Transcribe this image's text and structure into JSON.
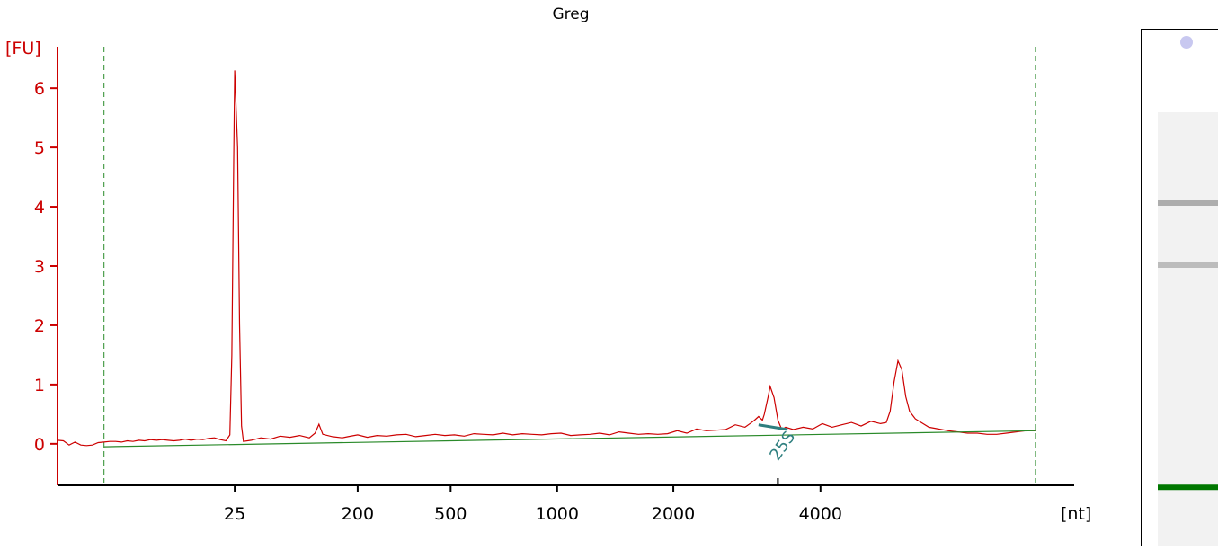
{
  "chart_data": {
    "type": "line",
    "title": "Greg",
    "ylabel": "[FU]",
    "xlabel": "[nt]",
    "ylim": [
      -0.7,
      6.7
    ],
    "y_ticks": [
      0,
      1,
      2,
      3,
      4,
      5,
      6
    ],
    "x_ticks": [
      "25",
      "200",
      "500",
      "1000",
      "2000",
      "4000"
    ],
    "grid": false,
    "series": [
      {
        "color": "#cc0000",
        "points": [
          [
            0.0,
            0.06
          ],
          [
            0.03,
            0.05
          ],
          [
            0.06,
            -0.02
          ],
          [
            0.09,
            0.03
          ],
          [
            0.12,
            -0.02
          ],
          [
            0.15,
            -0.03
          ],
          [
            0.18,
            -0.02
          ],
          [
            0.21,
            0.02
          ],
          [
            0.24,
            0.03
          ],
          [
            0.27,
            0.04
          ],
          [
            0.3,
            0.04
          ],
          [
            0.33,
            0.03
          ],
          [
            0.36,
            0.05
          ],
          [
            0.39,
            0.04
          ],
          [
            0.42,
            0.06
          ],
          [
            0.45,
            0.05
          ],
          [
            0.48,
            0.07
          ],
          [
            0.51,
            0.06
          ],
          [
            0.54,
            0.07
          ],
          [
            0.57,
            0.06
          ],
          [
            0.6,
            0.05
          ],
          [
            0.63,
            0.06
          ],
          [
            0.66,
            0.08
          ],
          [
            0.69,
            0.06
          ],
          [
            0.72,
            0.08
          ],
          [
            0.75,
            0.07
          ],
          [
            0.78,
            0.09
          ],
          [
            0.81,
            0.1
          ],
          [
            0.84,
            0.07
          ],
          [
            0.87,
            0.05
          ],
          [
            0.89,
            0.15
          ],
          [
            0.9,
            1.5
          ],
          [
            0.91,
            4.8
          ],
          [
            0.915,
            6.3
          ],
          [
            0.93,
            5.0
          ],
          [
            0.94,
            2.0
          ],
          [
            0.95,
            0.3
          ],
          [
            0.96,
            0.04
          ],
          [
            1.0,
            0.06
          ],
          [
            1.05,
            0.1
          ],
          [
            1.1,
            0.08
          ],
          [
            1.15,
            0.13
          ],
          [
            1.2,
            0.11
          ],
          [
            1.25,
            0.14
          ],
          [
            1.3,
            0.1
          ],
          [
            1.33,
            0.18
          ],
          [
            1.35,
            0.33
          ],
          [
            1.37,
            0.16
          ],
          [
            1.42,
            0.12
          ],
          [
            1.47,
            0.1
          ],
          [
            1.5,
            0.12
          ],
          [
            1.55,
            0.15
          ],
          [
            1.6,
            0.11
          ],
          [
            1.65,
            0.14
          ],
          [
            1.7,
            0.13
          ],
          [
            1.75,
            0.15
          ],
          [
            1.8,
            0.16
          ],
          [
            1.85,
            0.12
          ],
          [
            1.9,
            0.14
          ],
          [
            1.95,
            0.16
          ],
          [
            2.0,
            0.14
          ],
          [
            2.05,
            0.15
          ],
          [
            2.1,
            0.13
          ],
          [
            2.15,
            0.17
          ],
          [
            2.2,
            0.16
          ],
          [
            2.25,
            0.15
          ],
          [
            2.3,
            0.18
          ],
          [
            2.35,
            0.15
          ],
          [
            2.4,
            0.17
          ],
          [
            2.45,
            0.16
          ],
          [
            2.5,
            0.15
          ],
          [
            2.55,
            0.17
          ],
          [
            2.6,
            0.18
          ],
          [
            2.65,
            0.14
          ],
          [
            2.7,
            0.15
          ],
          [
            2.75,
            0.16
          ],
          [
            2.8,
            0.18
          ],
          [
            2.85,
            0.15
          ],
          [
            2.9,
            0.2
          ],
          [
            2.95,
            0.18
          ],
          [
            3.0,
            0.16
          ],
          [
            3.05,
            0.17
          ],
          [
            3.1,
            0.16
          ],
          [
            3.15,
            0.17
          ],
          [
            3.2,
            0.22
          ],
          [
            3.25,
            0.18
          ],
          [
            3.3,
            0.25
          ],
          [
            3.35,
            0.22
          ],
          [
            3.4,
            0.23
          ],
          [
            3.45,
            0.24
          ],
          [
            3.5,
            0.32
          ],
          [
            3.55,
            0.28
          ],
          [
            3.58,
            0.35
          ],
          [
            3.6,
            0.4
          ],
          [
            3.62,
            0.46
          ],
          [
            3.64,
            0.4
          ],
          [
            3.65,
            0.5
          ],
          [
            3.67,
            0.8
          ],
          [
            3.68,
            0.97
          ],
          [
            3.7,
            0.78
          ],
          [
            3.72,
            0.4
          ],
          [
            3.74,
            0.24
          ],
          [
            3.76,
            0.28
          ],
          [
            3.8,
            0.24
          ],
          [
            3.85,
            0.28
          ],
          [
            3.9,
            0.25
          ],
          [
            3.95,
            0.34
          ],
          [
            4.0,
            0.28
          ],
          [
            4.05,
            0.32
          ],
          [
            4.1,
            0.36
          ],
          [
            4.15,
            0.3
          ],
          [
            4.2,
            0.38
          ],
          [
            4.25,
            0.34
          ],
          [
            4.28,
            0.36
          ],
          [
            4.3,
            0.55
          ],
          [
            4.32,
            1.05
          ],
          [
            4.34,
            1.4
          ],
          [
            4.36,
            1.25
          ],
          [
            4.38,
            0.8
          ],
          [
            4.4,
            0.55
          ],
          [
            4.43,
            0.42
          ],
          [
            4.46,
            0.36
          ],
          [
            4.5,
            0.28
          ],
          [
            4.55,
            0.25
          ],
          [
            4.6,
            0.22
          ],
          [
            4.65,
            0.2
          ],
          [
            4.7,
            0.18
          ],
          [
            4.75,
            0.18
          ],
          [
            4.8,
            0.16
          ],
          [
            4.85,
            0.16
          ],
          [
            4.9,
            0.18
          ],
          [
            4.95,
            0.2
          ],
          [
            5.0,
            0.22
          ],
          [
            5.05,
            0.22
          ]
        ]
      },
      {
        "color": "#2a8a2a",
        "points": [
          [
            0.24,
            -0.05
          ],
          [
            5.05,
            0.22
          ]
        ]
      }
    ],
    "annotations": [
      {
        "text": "25S",
        "x": 3.72,
        "y": -0.3,
        "color": "#2e7f7f"
      }
    ],
    "markers": {
      "color": "#2a8a2a"
    },
    "colors": {
      "axis_y": "#cc0000",
      "axis_x": "#000000",
      "curve": "#cc0000",
      "baseline": "#2a8a2a",
      "annotation": "#2e7f7f"
    }
  },
  "gel_lane": {
    "color_marker": "#007700",
    "bands": [
      {
        "position": 0.28,
        "intensity": 0.55
      },
      {
        "position": 0.4,
        "intensity": 0.45
      },
      {
        "position": 0.83,
        "intensity": 1.0,
        "color": "#007700"
      }
    ]
  }
}
